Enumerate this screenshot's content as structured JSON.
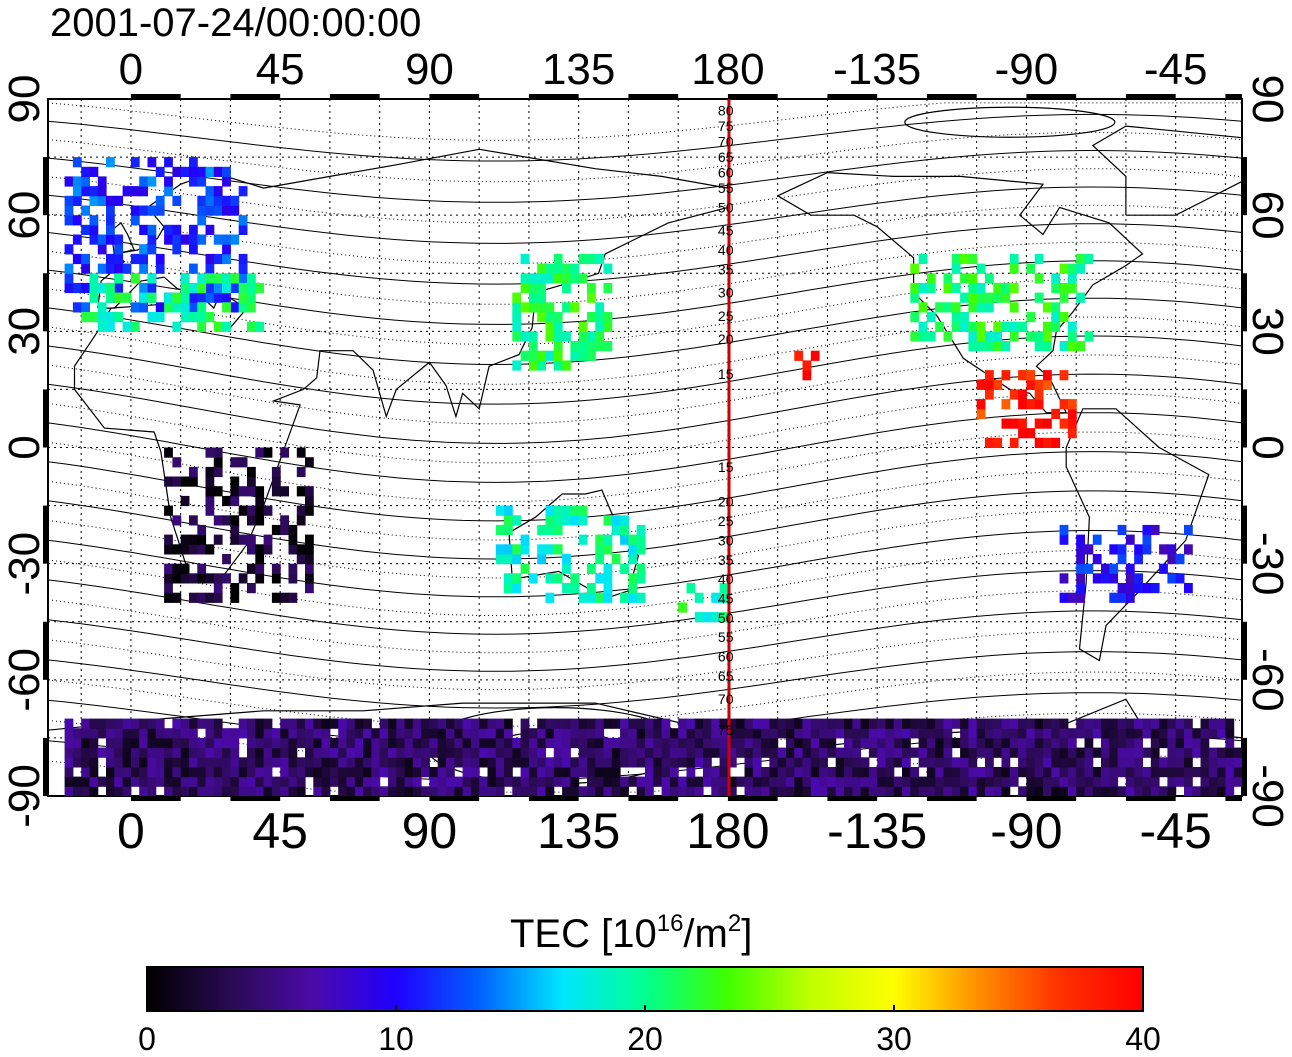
{
  "timestamp": "2001-07-24/00:00:00",
  "lon_ticks_top": [
    "0",
    "45",
    "90",
    "135",
    "180",
    "-135",
    "-90",
    "-45"
  ],
  "lon_ticks_bottom": [
    "0",
    "45",
    "90",
    "135",
    "180",
    "-135",
    "-90",
    "-45"
  ],
  "lat_ticks_left": [
    "90",
    "60",
    "30",
    "0",
    "-30",
    "-60",
    "-90"
  ],
  "lat_ticks_right": [
    "90",
    "60",
    "30",
    "0",
    "-30",
    "-60",
    "-90"
  ],
  "meridian_labels_north": [
    "80",
    "75",
    "70",
    "65",
    "60",
    "55",
    "50",
    "45",
    "40",
    "35",
    "30",
    "25",
    "20",
    "15"
  ],
  "meridian_labels_south": [
    "15",
    "20",
    "25",
    "30",
    "35",
    "40",
    "45",
    "50",
    "55",
    "60",
    "65",
    "70",
    "75"
  ],
  "colorbar": {
    "title_main": "TEC  [10",
    "title_exp1": "16",
    "title_mid": "/m",
    "title_exp2": "2",
    "title_end": "]",
    "ticks": [
      "0",
      "10",
      "20",
      "30",
      "40"
    ],
    "range": [
      0,
      40
    ],
    "colors": [
      "#000000",
      "#2a0a52",
      "#4b0aa8",
      "#2000ff",
      "#0060ff",
      "#00e5ff",
      "#00ff90",
      "#40ff00",
      "#c0ff00",
      "#ffff00",
      "#ff9000",
      "#ff3000",
      "#ff0000"
    ]
  },
  "chart_data": {
    "type": "heatmap",
    "title": "2001-07-24/00:00:00",
    "xlabel": "",
    "ylabel": "",
    "xlim": [
      -25,
      335
    ],
    "ylim": [
      -90,
      90
    ],
    "x_ticks": [
      0,
      45,
      90,
      135,
      180,
      225,
      270,
      315
    ],
    "y_ticks": [
      90,
      60,
      30,
      0,
      -30,
      -60,
      -90
    ],
    "grid": true,
    "colorbar_range": [
      0,
      40
    ],
    "regions": [
      {
        "lon": [
          -20,
          35
        ],
        "lat": [
          35,
          75
        ],
        "tec": 12
      },
      {
        "lon": [
          -15,
          40
        ],
        "lat": [
          30,
          45
        ],
        "tec": 20
      },
      {
        "lon": [
          10,
          55
        ],
        "lat": [
          -40,
          0
        ],
        "tec": 2
      },
      {
        "lon": [
          115,
          145
        ],
        "lat": [
          20,
          50
        ],
        "tec": 21
      },
      {
        "lon": [
          110,
          155
        ],
        "lat": [
          -40,
          -15
        ],
        "tec": 19
      },
      {
        "lon": [
          165,
          180
        ],
        "lat": [
          -45,
          -35
        ],
        "tec": 20
      },
      {
        "lon": [
          235,
          290
        ],
        "lat": [
          25,
          50
        ],
        "tec": 21
      },
      {
        "lon": [
          255,
          285
        ],
        "lat": [
          0,
          20
        ],
        "tec": 38
      },
      {
        "lon": [
          200,
          210
        ],
        "lat": [
          15,
          25
        ],
        "tec": 38
      },
      {
        "lon": [
          280,
          320
        ],
        "lat": [
          -40,
          -20
        ],
        "tec": 10
      },
      {
        "lon": [
          -20,
          335
        ],
        "lat": [
          -90,
          -70
        ],
        "tec": 4
      }
    ]
  }
}
